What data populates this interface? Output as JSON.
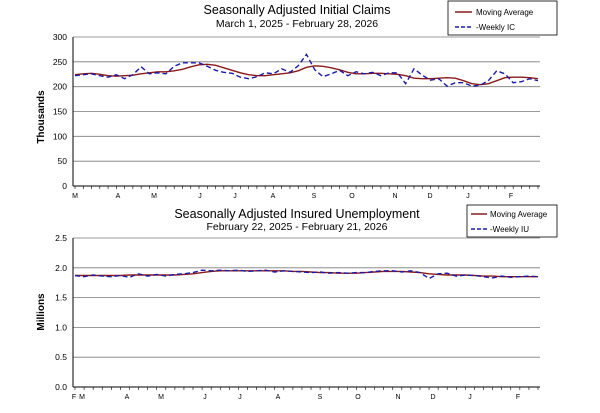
{
  "chart_data": [
    {
      "type": "line",
      "title": "Seasonally Adjusted Initial Claims",
      "subtitle": "March 1, 2025 - February 28, 2026",
      "ylabel": "Thousands",
      "xlabel": "",
      "ylim": [
        0,
        300
      ],
      "yticks": [
        "0",
        "50",
        "100",
        "150",
        "200",
        "250",
        "300"
      ],
      "ytick_values": [
        0,
        50,
        100,
        150,
        200,
        250,
        300
      ],
      "xtick_labels": [
        "M",
        "A",
        "M",
        "J",
        "J",
        "A",
        "S",
        "O",
        "N",
        "D",
        "J",
        "F"
      ],
      "grid": true,
      "legend_position": "top-right",
      "series": [
        {
          "name": "Moving Average",
          "color": "#8b1a1a",
          "style": "solid",
          "values": [
            224,
            226,
            227,
            225,
            222,
            221,
            222,
            223,
            226,
            228,
            230,
            230,
            232,
            235,
            240,
            244,
            245,
            243,
            238,
            233,
            228,
            224,
            222,
            222,
            224,
            226,
            228,
            232,
            239,
            242,
            241,
            238,
            234,
            229,
            226,
            226,
            227,
            227,
            226,
            225,
            222,
            217,
            216,
            216,
            217,
            218,
            217,
            212,
            206,
            204,
            206,
            212,
            218,
            219,
            219,
            218,
            216
          ]
        },
        {
          "name": "-Weekly IC",
          "color": "#1a1aaa",
          "style": "dashed",
          "values": [
            222,
            224,
            226,
            222,
            219,
            224,
            216,
            224,
            240,
            226,
            228,
            226,
            241,
            248,
            248,
            248,
            241,
            233,
            229,
            227,
            219,
            216,
            220,
            228,
            226,
            236,
            229,
            242,
            265,
            234,
            220,
            226,
            233,
            222,
            230,
            226,
            229,
            222,
            228,
            228,
            206,
            236,
            223,
            213,
            216,
            201,
            208,
            208,
            201,
            203,
            212,
            232,
            226,
            208,
            210,
            216,
            212
          ]
        }
      ]
    },
    {
      "type": "line",
      "title": "Seasonally Adjusted Insured Unemployment",
      "subtitle": "February 22, 2025 - February 21, 2026",
      "ylabel": "Millions",
      "xlabel": "",
      "ylim": [
        0,
        2.5
      ],
      "yticks": [
        "0.0",
        "0.5",
        "1.0",
        "1.5",
        "2.0",
        "2.5"
      ],
      "ytick_values": [
        0,
        0.5,
        1.0,
        1.5,
        2.0,
        2.5
      ],
      "xtick_labels": [
        "F",
        "M",
        "A",
        "M",
        "J",
        "J",
        "A",
        "S",
        "O",
        "N",
        "D",
        "J",
        "F"
      ],
      "grid": true,
      "legend_position": "top-right",
      "series": [
        {
          "name": "Moving Average",
          "color": "#8b1a1a",
          "style": "solid",
          "values": [
            1.87,
            1.87,
            1.87,
            1.87,
            1.87,
            1.87,
            1.88,
            1.88,
            1.88,
            1.88,
            1.88,
            1.88,
            1.89,
            1.9,
            1.92,
            1.94,
            1.95,
            1.95,
            1.95,
            1.95,
            1.95,
            1.95,
            1.95,
            1.95,
            1.94,
            1.94,
            1.93,
            1.92,
            1.92,
            1.91,
            1.91,
            1.91,
            1.92,
            1.93,
            1.94,
            1.94,
            1.94,
            1.93,
            1.92,
            1.9,
            1.89,
            1.88,
            1.88,
            1.88,
            1.87,
            1.86,
            1.86,
            1.85,
            1.85,
            1.85,
            1.85,
            1.85
          ]
        },
        {
          "name": "-Weekly IU",
          "color": "#1a1aaa",
          "style": "dashed",
          "values": [
            1.87,
            1.85,
            1.88,
            1.86,
            1.85,
            1.87,
            1.84,
            1.9,
            1.86,
            1.89,
            1.86,
            1.89,
            1.9,
            1.92,
            1.96,
            1.95,
            1.96,
            1.95,
            1.96,
            1.94,
            1.95,
            1.96,
            1.93,
            1.95,
            1.94,
            1.93,
            1.92,
            1.93,
            1.91,
            1.92,
            1.91,
            1.92,
            1.92,
            1.94,
            1.95,
            1.95,
            1.93,
            1.95,
            1.92,
            1.82,
            1.9,
            1.91,
            1.86,
            1.88,
            1.87,
            1.85,
            1.83,
            1.86,
            1.84,
            1.85,
            1.86,
            1.85
          ]
        }
      ]
    }
  ]
}
